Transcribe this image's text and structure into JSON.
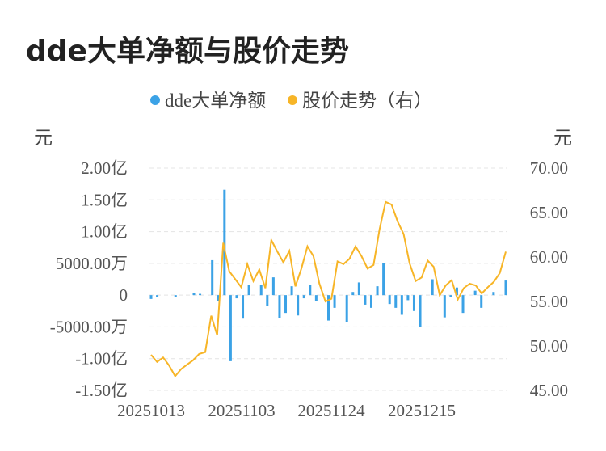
{
  "title": "dde大单净额与股价走势",
  "chart_data": {
    "type": "bar+line",
    "legend": [
      {
        "name": "dde大单净额",
        "color": "#3ba2e6",
        "marker": "circle"
      },
      {
        "name": "股价走势（右）",
        "color": "#f7b527",
        "marker": "circle"
      }
    ],
    "legend_position": "top-center",
    "left_axis": {
      "unit": "元",
      "ticks": [
        "2.00亿",
        "1.50亿",
        "1.00亿",
        "5000.00万",
        "0",
        "-5000.00万",
        "-1.00亿",
        "-1.50亿"
      ],
      "range": [
        -150000000,
        200000000
      ]
    },
    "right_axis": {
      "unit": "元",
      "ticks": [
        "70.00",
        "65.00",
        "60.00",
        "55.00",
        "50.00",
        "45.00"
      ],
      "range": [
        45,
        70
      ]
    },
    "x_ticks": [
      "20251013",
      "20251103",
      "20251124",
      "20251215"
    ],
    "grid": "horizontal-dashed",
    "series": [
      {
        "name": "dde大单净额",
        "type": "bar",
        "color": "#3ba2e6",
        "values": [
          -6000000,
          -3000000,
          0,
          0,
          -3000000,
          0,
          0,
          3000000,
          2000000,
          0,
          55000000,
          -10000000,
          166000000,
          -104000000,
          -5000000,
          -37000000,
          16000000,
          0,
          16000000,
          -17000000,
          28000000,
          -36000000,
          -28000000,
          14000000,
          -32000000,
          -5000000,
          16000000,
          -10000000,
          0,
          -40000000,
          -20000000,
          0,
          -42000000,
          5000000,
          20000000,
          -15000000,
          -20000000,
          14000000,
          51000000,
          -14000000,
          -20000000,
          -31000000,
          -8000000,
          -25000000,
          -50000000,
          0,
          25000000,
          0,
          -35000000,
          -3000000,
          12000000,
          -28000000,
          0,
          7000000,
          -20000000,
          0,
          5000000,
          0,
          23000000
        ]
      },
      {
        "name": "股价走势（右）",
        "type": "line",
        "color": "#f7b527",
        "values": [
          49.0,
          48.2,
          48.7,
          47.8,
          46.6,
          47.4,
          47.9,
          48.4,
          49.1,
          49.3,
          53.4,
          51.2,
          61.6,
          58.4,
          57.5,
          56.6,
          59.2,
          57.3,
          58.6,
          56.5,
          61.9,
          60.6,
          59.4,
          60.7,
          56.7,
          58.7,
          61.2,
          60.1,
          57.0,
          55.0,
          55.3,
          59.5,
          59.2,
          59.8,
          61.2,
          60.1,
          58.7,
          59.1,
          63.1,
          66.2,
          65.9,
          64.0,
          62.6,
          59.3,
          57.3,
          57.7,
          59.6,
          58.9,
          55.7,
          56.8,
          57.4,
          55.2,
          56.5,
          57.0,
          56.8,
          55.9,
          56.6,
          57.2,
          58.2,
          60.6
        ]
      }
    ]
  }
}
